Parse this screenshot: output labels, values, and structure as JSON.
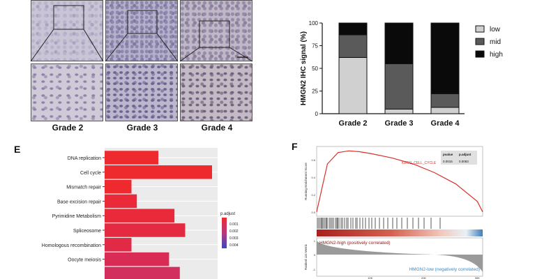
{
  "panel_ihc": {
    "grades": [
      "Grade 2",
      "Grade 3",
      "Grade 4"
    ]
  },
  "panel_bar": {
    "chart_data": {
      "type": "bar",
      "stacked": true,
      "categories": [
        "Grade 2",
        "Grade 3",
        "Grade 4"
      ],
      "series": [
        {
          "name": "low",
          "values": [
            62,
            5,
            7
          ],
          "color": "#d0d0d0"
        },
        {
          "name": "mid",
          "values": [
            25,
            50,
            15
          ],
          "color": "#5a5a5a"
        },
        {
          "name": "high",
          "values": [
            13,
            45,
            78
          ],
          "color": "#0a0a0a"
        }
      ],
      "ylabel": "HMGN2 IHC signal (%)",
      "ylim": [
        0,
        100
      ],
      "yticks": [
        "0",
        "25",
        "50",
        "75",
        "100"
      ],
      "legend": [
        "low",
        "mid",
        "high"
      ],
      "legend_position": "right"
    }
  },
  "panel_e": {
    "letter": "E",
    "chart_data": {
      "type": "bar",
      "orientation": "horizontal",
      "categories": [
        "DNA replication",
        "Cell cycle",
        "Mismatch repair",
        "Base excision repair",
        "Pyrimidine Metabolism",
        "Spliceosome",
        "Homologous recombination",
        "Oocyte meiosis"
      ],
      "values": [
        10,
        20,
        5,
        6,
        13,
        15,
        5,
        12
      ],
      "colors": [
        "#ee2a2f",
        "#ee2a2f",
        "#ee2a2f",
        "#ea2a38",
        "#e82a3a",
        "#e42a40",
        "#e12a45",
        "#d82c55"
      ],
      "legend_title": "p.adjust",
      "legend_ticks": [
        "0.001",
        "0.002",
        "0.003",
        "0.004"
      ]
    }
  },
  "panel_f": {
    "letter": "F",
    "gene_set": "KEGG_CELL_CYCLE",
    "table_headers": [
      "pvalue",
      "p.adjust"
    ],
    "table_values": [
      "0.0015",
      "0.0083"
    ],
    "ylabel_top": "Running Enrichment Score",
    "ylabel_bottom": "Ranked List Metric",
    "y_ticks_top": [
      "0.6",
      "0.4",
      "0.2",
      "0.0"
    ],
    "y_ticks_bottom": [
      "1",
      "0",
      "-1"
    ],
    "x_ticks": [
      "10K",
      "20K",
      "30K"
    ],
    "high_label": "HMGN2-high (positively correlated)",
    "low_label": "HMGN2-low (negatively correlated)",
    "colors": {
      "curve": "#d9312a",
      "high_text": "#8b1a1a",
      "low_text": "#3a8ac9"
    },
    "chart_data": {
      "type": "line",
      "x": [
        0,
        2000,
        4000,
        6000,
        8000,
        10000,
        14000,
        18000,
        22000,
        26000,
        30000,
        31000
      ],
      "y": [
        0.0,
        0.55,
        0.68,
        0.7,
        0.69,
        0.67,
        0.62,
        0.55,
        0.45,
        0.32,
        0.12,
        0.0
      ],
      "xlim": [
        0,
        31000
      ],
      "ylim": [
        -0.05,
        0.75
      ]
    }
  }
}
